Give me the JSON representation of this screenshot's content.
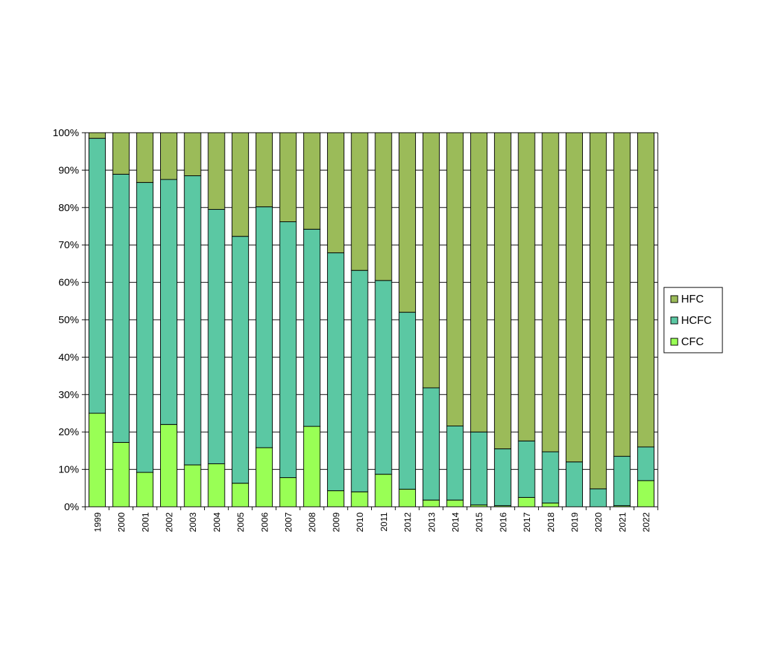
{
  "chart_data": {
    "type": "bar",
    "stacked": true,
    "percent_stacked": true,
    "title": "",
    "xlabel": "",
    "ylabel": "",
    "ylim": [
      0,
      100
    ],
    "y_ticks": [
      "0%",
      "10%",
      "20%",
      "30%",
      "40%",
      "50%",
      "60%",
      "70%",
      "80%",
      "90%",
      "100%"
    ],
    "grid": true,
    "legend_position": "right",
    "categories": [
      "1999",
      "2000",
      "2001",
      "2002",
      "2003",
      "2004",
      "2005",
      "2006",
      "2007",
      "2008",
      "2009",
      "2010",
      "2011",
      "2012",
      "2013",
      "2014",
      "2015",
      "2016",
      "2017",
      "2018",
      "2019",
      "2020",
      "2021",
      "2022"
    ],
    "series": [
      {
        "name": "CFC",
        "color": "#99ff55",
        "values": [
          25.0,
          17.2,
          9.2,
          22.0,
          11.2,
          11.5,
          6.3,
          15.8,
          7.8,
          21.5,
          4.3,
          4.0,
          8.7,
          4.7,
          1.8,
          1.8,
          0.5,
          0.3,
          2.5,
          1.0,
          0.0,
          0.0,
          0.3,
          7.0
        ]
      },
      {
        "name": "HCFC",
        "color": "#5bc8a3",
        "values": [
          73.5,
          71.7,
          77.5,
          65.5,
          77.3,
          68.0,
          66.0,
          64.4,
          68.4,
          52.7,
          63.6,
          59.2,
          51.8,
          47.3,
          30.0,
          19.8,
          19.5,
          15.2,
          15.1,
          13.7,
          12.0,
          4.8,
          13.2,
          9.0
        ]
      },
      {
        "name": "HFC",
        "color": "#9bbb59",
        "values": [
          1.5,
          11.1,
          13.3,
          12.5,
          11.5,
          20.5,
          27.7,
          19.8,
          23.8,
          25.8,
          32.1,
          36.8,
          39.5,
          48.0,
          68.2,
          78.4,
          80.0,
          84.5,
          82.4,
          85.3,
          88.0,
          95.2,
          86.5,
          84.0
        ]
      }
    ],
    "legend_order": [
      "HFC",
      "HCFC",
      "CFC"
    ]
  }
}
